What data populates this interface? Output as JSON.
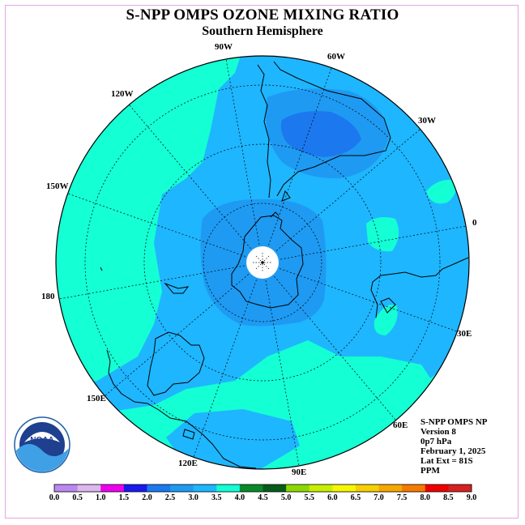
{
  "header": {
    "title": "S-NPP OMPS OZONE MIXING RATIO",
    "subtitle": "Southern Hemisphere"
  },
  "map": {
    "meridian_labels": [
      "90W",
      "60W",
      "30W",
      "0",
      "30E",
      "60E",
      "90E",
      "120E",
      "150E",
      "180",
      "150W",
      "120W"
    ]
  },
  "info": {
    "lines": [
      "S-NPP OMPS NP",
      "Version 8",
      "0p7 hPa",
      "February 1, 2025",
      "Lat Ext = 81S",
      "PPM"
    ]
  },
  "logo": {
    "text": "NOAA",
    "icon": "noaa-logo"
  },
  "colorbar": {
    "labels": [
      "0.0",
      "0.5",
      "1.0",
      "1.5",
      "2.0",
      "2.5",
      "3.0",
      "3.5",
      "4.0",
      "4.5",
      "5.0",
      "5.5",
      "6.0",
      "6.5",
      "7.0",
      "7.5",
      "8.0",
      "8.5",
      "9.0"
    ],
    "colors": [
      "#bb88f0",
      "#ddb8ee",
      "#ee00ee",
      "#1a1aee",
      "#1c78ee",
      "#1e9af2",
      "#1eb6ff",
      "#14ffd4",
      "#0a8a2a",
      "#065c1a",
      "#8cd800",
      "#c8ee00",
      "#f6f600",
      "#f6d000",
      "#f6a800",
      "#f67a00",
      "#ee0000",
      "#d42222",
      "#8a5a3a"
    ]
  }
}
